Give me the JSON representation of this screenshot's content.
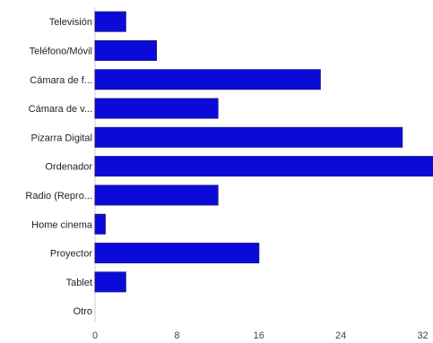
{
  "chart_data": {
    "type": "bar",
    "orientation": "horizontal",
    "categories": [
      "Televisión",
      "Teléfono/Móvil",
      "Cámara de f...",
      "Cámara de v...",
      "Pizarra Digital",
      "Ordenador",
      "Radio (Repro...",
      "Home cinema",
      "Proyector",
      "Tablet",
      "Otro"
    ],
    "values": [
      3,
      6,
      22,
      12,
      30,
      33,
      12,
      1,
      16,
      3,
      0
    ],
    "xticks": [
      0,
      8,
      16,
      24,
      32
    ],
    "xlim": [
      0,
      33
    ],
    "title": "",
    "xlabel": "",
    "ylabel": "",
    "grid": false,
    "legend": "none",
    "bar_color": "#0b0bd9",
    "bar_border_color": "#1a1a8c"
  }
}
